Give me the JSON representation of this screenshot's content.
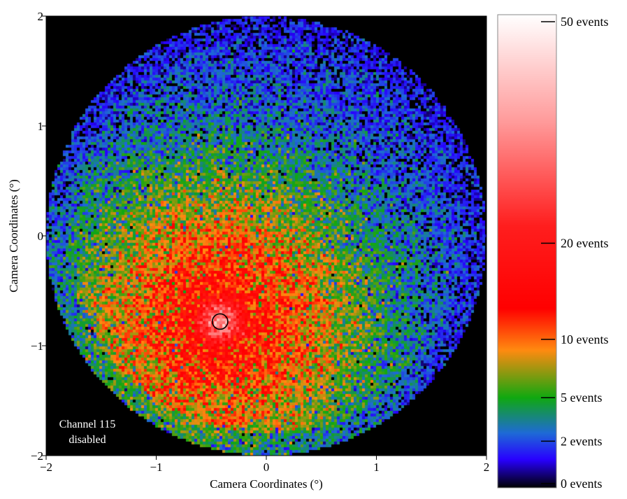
{
  "chart_data": {
    "type": "heatmap",
    "title": "",
    "xlabel": "Camera Coordinates (°)",
    "ylabel": "Camera Coordinates (°)",
    "xlim": [
      -2,
      2
    ],
    "ylim": [
      -2,
      2
    ],
    "x_ticks": [
      -2,
      -1,
      0,
      1,
      2
    ],
    "y_ticks": [
      -2,
      -1,
      0,
      1,
      2
    ],
    "x_tick_labels": [
      "−2",
      "−1",
      "0",
      "1",
      "2"
    ],
    "y_tick_labels": [
      "−2",
      "−1",
      "0",
      "1",
      "2"
    ],
    "field_of_view_radius_deg": 2.0,
    "peak_position_deg": [
      -0.42,
      -0.78
    ],
    "marker": {
      "shape": "circle",
      "center_deg": [
        -0.42,
        -0.78
      ],
      "radius_deg": 0.07
    },
    "colorbar": {
      "ticks": [
        {
          "value": 50,
          "label": "50 events"
        },
        {
          "value": 20,
          "label": "20 events"
        },
        {
          "value": 10,
          "label": "10 events"
        },
        {
          "value": 5,
          "label": "5 events"
        },
        {
          "value": 2,
          "label": "2 events"
        },
        {
          "value": 0,
          "label": "0 events"
        }
      ],
      "colormap": [
        {
          "value": 0,
          "color": "#000000"
        },
        {
          "value": 1,
          "color": "#2800ff"
        },
        {
          "value": 2.5,
          "color": "#1e6ad6"
        },
        {
          "value": 5,
          "color": "#10a810"
        },
        {
          "value": 9,
          "color": "#ff8a10"
        },
        {
          "value": 13,
          "color": "#ff0000"
        },
        {
          "value": 22,
          "color": "#ff1e1e"
        },
        {
          "value": 35,
          "color": "#ff9a9a"
        },
        {
          "value": 50,
          "color": "#ffffff"
        }
      ]
    },
    "annotation": {
      "line1": "Channel 115",
      "line2": "disabled"
    }
  }
}
